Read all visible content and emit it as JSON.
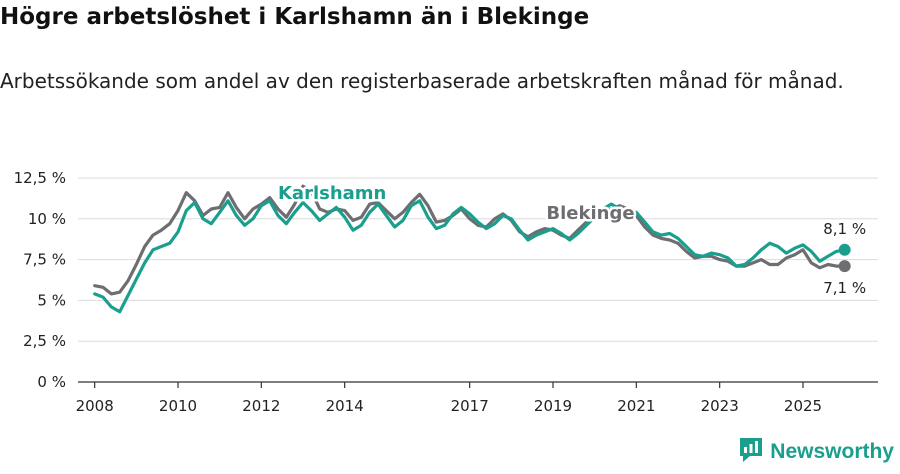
{
  "title": "Högre arbetslöshet i Karlshamn än i Blekinge",
  "subtitle": "Arbetssökande som andel av den registerbaserade arbetskraften månad för månad.",
  "brand": {
    "name": "Newsworthy",
    "color": "#1a9f8e",
    "logo_icon": "bar-chart-speech-icon"
  },
  "chart_data": {
    "type": "line",
    "ylim": [
      0,
      12.5
    ],
    "yticks": [
      0,
      2.5,
      5,
      7.5,
      10,
      12.5
    ],
    "ytick_labels": [
      "0 %",
      "2,5 %",
      "5 %",
      "7,5 %",
      "10 %",
      "12,5 %"
    ],
    "xlim": [
      2007.6,
      2026.8
    ],
    "xticks": [
      2008,
      2010,
      2012,
      2014,
      2017,
      2019,
      2021,
      2023,
      2025
    ],
    "xtick_labels": [
      "2008",
      "2010",
      "2012",
      "2014",
      "2017",
      "2019",
      "2021",
      "2023",
      "2025"
    ],
    "grid": true,
    "series": [
      {
        "name": "Karlshamn",
        "color": "#1a9f8e",
        "label_at": [
          2013.7,
          11.2
        ],
        "end_label": "8,1 %",
        "x": [
          2008.0,
          2008.2,
          2008.4,
          2008.6,
          2008.8,
          2009.0,
          2009.2,
          2009.4,
          2009.6,
          2009.8,
          2010.0,
          2010.2,
          2010.4,
          2010.6,
          2010.8,
          2011.0,
          2011.2,
          2011.4,
          2011.6,
          2011.8,
          2012.0,
          2012.2,
          2012.4,
          2012.6,
          2012.8,
          2013.0,
          2013.2,
          2013.4,
          2013.6,
          2013.8,
          2014.0,
          2014.2,
          2014.4,
          2014.6,
          2014.8,
          2015.0,
          2015.2,
          2015.4,
          2015.6,
          2015.8,
          2016.0,
          2016.2,
          2016.4,
          2016.6,
          2016.8,
          2017.0,
          2017.2,
          2017.4,
          2017.6,
          2017.8,
          2018.0,
          2018.2,
          2018.4,
          2018.6,
          2018.8,
          2019.0,
          2019.2,
          2019.4,
          2019.6,
          2019.8,
          2020.0,
          2020.2,
          2020.4,
          2020.6,
          2020.8,
          2021.0,
          2021.2,
          2021.4,
          2021.6,
          2021.8,
          2022.0,
          2022.2,
          2022.4,
          2022.6,
          2022.8,
          2023.0,
          2023.2,
          2023.4,
          2023.6,
          2023.8,
          2024.0,
          2024.2,
          2024.4,
          2024.6,
          2024.8,
          2025.0,
          2025.2,
          2025.4,
          2025.6,
          2025.8,
          2026.0
        ],
        "y": [
          5.4,
          5.2,
          4.6,
          4.3,
          5.3,
          6.3,
          7.3,
          8.1,
          8.3,
          8.5,
          9.2,
          10.5,
          11.0,
          10.0,
          9.7,
          10.4,
          11.1,
          10.2,
          9.6,
          10.0,
          10.8,
          11.1,
          10.2,
          9.7,
          10.4,
          11.0,
          10.5,
          9.9,
          10.3,
          10.7,
          10.1,
          9.3,
          9.6,
          10.4,
          10.9,
          10.2,
          9.5,
          9.9,
          10.8,
          11.1,
          10.1,
          9.4,
          9.6,
          10.3,
          10.7,
          10.3,
          9.8,
          9.4,
          9.7,
          10.2,
          10.0,
          9.3,
          8.7,
          9.0,
          9.2,
          9.4,
          9.1,
          8.7,
          9.1,
          9.6,
          10.1,
          10.6,
          10.9,
          10.6,
          10.5,
          10.4,
          9.8,
          9.2,
          9.0,
          9.1,
          8.8,
          8.3,
          7.8,
          7.7,
          7.9,
          7.8,
          7.6,
          7.1,
          7.2,
          7.6,
          8.1,
          8.5,
          8.3,
          7.9,
          8.2,
          8.4,
          8.0,
          7.4,
          7.7,
          8.0,
          8.1
        ]
      },
      {
        "name": "Blekinge",
        "color": "#6e6e72",
        "label_at": [
          2019.9,
          10.0
        ],
        "end_label": "7,1 %",
        "x": [
          2008.0,
          2008.2,
          2008.4,
          2008.6,
          2008.8,
          2009.0,
          2009.2,
          2009.4,
          2009.6,
          2009.8,
          2010.0,
          2010.2,
          2010.4,
          2010.6,
          2010.8,
          2011.0,
          2011.2,
          2011.4,
          2011.6,
          2011.8,
          2012.0,
          2012.2,
          2012.4,
          2012.6,
          2012.8,
          2013.0,
          2013.2,
          2013.4,
          2013.6,
          2013.8,
          2014.0,
          2014.2,
          2014.4,
          2014.6,
          2014.8,
          2015.0,
          2015.2,
          2015.4,
          2015.6,
          2015.8,
          2016.0,
          2016.2,
          2016.4,
          2016.6,
          2016.8,
          2017.0,
          2017.2,
          2017.4,
          2017.6,
          2017.8,
          2018.0,
          2018.2,
          2018.4,
          2018.6,
          2018.8,
          2019.0,
          2019.2,
          2019.4,
          2019.6,
          2019.8,
          2020.0,
          2020.2,
          2020.4,
          2020.6,
          2020.8,
          2021.0,
          2021.2,
          2021.4,
          2021.6,
          2021.8,
          2022.0,
          2022.2,
          2022.4,
          2022.6,
          2022.8,
          2023.0,
          2023.2,
          2023.4,
          2023.6,
          2023.8,
          2024.0,
          2024.2,
          2024.4,
          2024.6,
          2024.8,
          2025.0,
          2025.2,
          2025.4,
          2025.6,
          2025.8,
          2026.0
        ],
        "y": [
          5.9,
          5.8,
          5.4,
          5.5,
          6.2,
          7.2,
          8.3,
          9.0,
          9.3,
          9.7,
          10.5,
          11.6,
          11.1,
          10.2,
          10.6,
          10.7,
          11.6,
          10.7,
          10.0,
          10.6,
          10.9,
          11.3,
          10.6,
          10.1,
          10.9,
          12.0,
          11.7,
          10.6,
          10.4,
          10.6,
          10.5,
          9.9,
          10.1,
          10.9,
          11.0,
          10.5,
          10.0,
          10.4,
          11.0,
          11.5,
          10.8,
          9.8,
          9.9,
          10.2,
          10.6,
          10.0,
          9.6,
          9.5,
          10.0,
          10.3,
          9.9,
          9.2,
          8.9,
          9.2,
          9.4,
          9.3,
          9.0,
          8.8,
          9.3,
          9.8,
          10.2,
          10.5,
          10.6,
          10.8,
          10.6,
          10.2,
          9.5,
          9.0,
          8.8,
          8.7,
          8.5,
          8.0,
          7.6,
          7.7,
          7.7,
          7.5,
          7.4,
          7.1,
          7.1,
          7.3,
          7.5,
          7.2,
          7.2,
          7.6,
          7.8,
          8.1,
          7.3,
          7.0,
          7.2,
          7.1,
          7.1
        ]
      }
    ]
  }
}
